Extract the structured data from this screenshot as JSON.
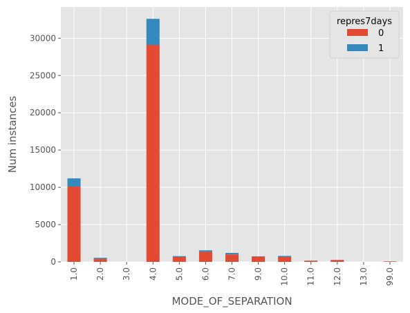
{
  "chart_data": {
    "type": "bar",
    "stacked": true,
    "categories": [
      "1.0",
      "2.0",
      "3.0",
      "4.0",
      "5.0",
      "6.0",
      "7.0",
      "9.0",
      "10.0",
      "11.0",
      "12.0",
      "13.0",
      "99.0"
    ],
    "series": [
      {
        "name": "0",
        "color": "#e24a33",
        "values": [
          10100,
          400,
          0,
          29100,
          650,
          1350,
          1000,
          700,
          650,
          150,
          250,
          0,
          60
        ]
      },
      {
        "name": "1",
        "color": "#348abd",
        "values": [
          1100,
          150,
          0,
          3500,
          120,
          200,
          200,
          40,
          150,
          20,
          20,
          0,
          10
        ]
      }
    ],
    "xlabel": "MODE_OF_SEPARATION",
    "ylabel": "Num instances",
    "ylim": [
      0,
      34200
    ],
    "yticks": [
      0,
      5000,
      10000,
      15000,
      20000,
      25000,
      30000
    ],
    "grid": true,
    "legend": {
      "title": "repres7days",
      "position": "top-right"
    }
  }
}
